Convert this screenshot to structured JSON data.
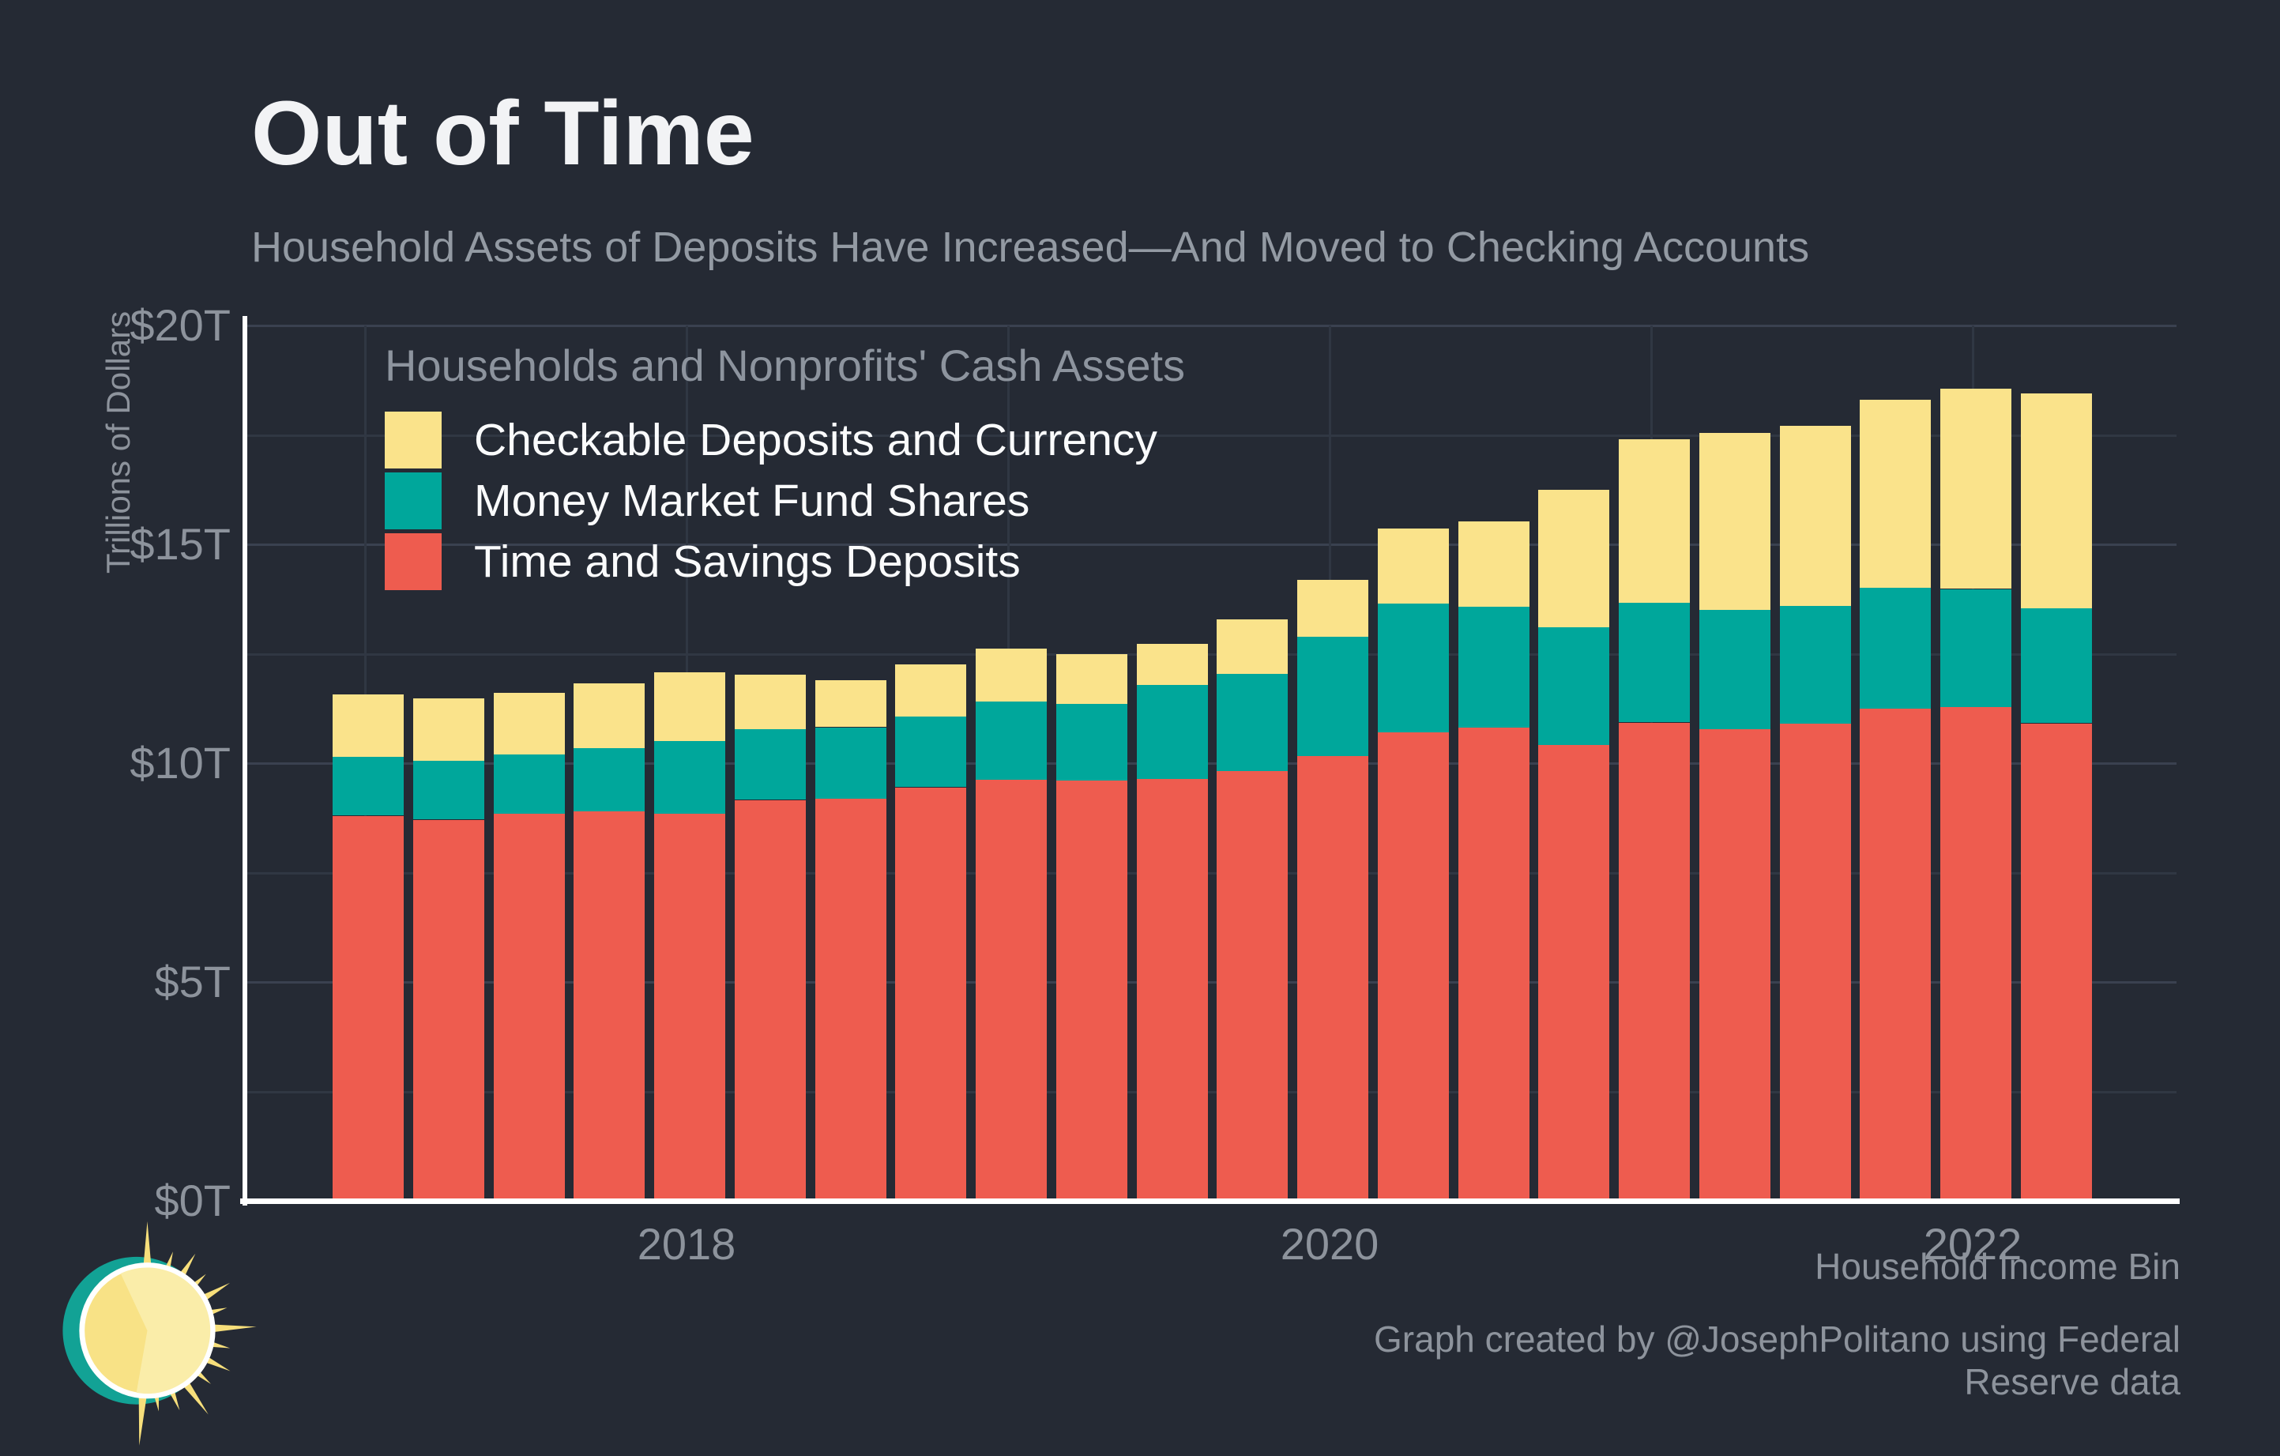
{
  "title": "Out of Time",
  "subtitle": "Household Assets of Deposits Have Increased—And Moved to Checking Accounts",
  "footer": "Graph created by @JosephPolitano using Federal Reserve data",
  "colors": {
    "background": "#252A34",
    "title_text": "#F2F3F5",
    "muted_text": "#939AA3",
    "tick_text": "#8D939C",
    "legend_text": "#FAFBFC",
    "axis_line": "#FFFFFF",
    "gridline_major": "#3A4150",
    "gridline_minor": "#303743",
    "bar_yellow": "#FAE38B",
    "bar_teal": "#00A79B",
    "bar_red": "#EE5C4F"
  },
  "legend": {
    "title": "Households and Nonprofits' Cash Assets",
    "items": [
      {
        "label": "Checkable Deposits and Currency",
        "color": "#FAE38B"
      },
      {
        "label": "Money Market Fund Shares",
        "color": "#00A79B"
      },
      {
        "label": "Time and Savings Deposits",
        "color": "#EE5C4F"
      }
    ]
  },
  "y_axis": {
    "label": "Trillions of Dollars"
  },
  "x_axis": {
    "caption": "Household Income Bin"
  },
  "chart_data": {
    "type": "bar",
    "stacked": true,
    "title": "Households and Nonprofits' Cash Assets",
    "xlabel": "Household Income Bin",
    "ylabel": "Trillions of Dollars",
    "ylim": [
      0,
      20
    ],
    "grid": true,
    "legend_position": "top-left",
    "y_ticks": [
      {
        "label": "$0T",
        "value": 0
      },
      {
        "label": "$5T",
        "value": 5
      },
      {
        "label": "$10T",
        "value": 10
      },
      {
        "label": "$15T",
        "value": 15
      },
      {
        "label": "$20T",
        "value": 20
      }
    ],
    "y_minor_gridlines": [
      2.5,
      7.5,
      12.5,
      17.5
    ],
    "x_ticks": [
      {
        "label": "2018",
        "year": 2018
      },
      {
        "label": "2020",
        "year": 2020
      },
      {
        "label": "2022",
        "year": 2022
      }
    ],
    "x_year_gridlines": [
      2017,
      2018,
      2019,
      2020,
      2021,
      2022
    ],
    "categories": [
      "2017 Q1",
      "2017 Q2",
      "2017 Q3",
      "2017 Q4",
      "2018 Q1",
      "2018 Q2",
      "2018 Q3",
      "2018 Q4",
      "2019 Q1",
      "2019 Q2",
      "2019 Q3",
      "2019 Q4",
      "2020 Q1",
      "2020 Q2",
      "2020 Q3",
      "2020 Q4",
      "2021 Q1",
      "2021 Q2",
      "2021 Q3",
      "2021 Q4",
      "2022 Q1",
      "2022 Q2"
    ],
    "series": [
      {
        "name": "Time and Savings Deposits",
        "color": "#EE5C4F",
        "values": [
          8.8,
          8.71,
          8.84,
          8.9,
          8.85,
          9.16,
          9.18,
          9.45,
          9.62,
          9.61,
          9.64,
          9.82,
          10.16,
          10.7,
          10.81,
          10.41,
          10.93,
          10.77,
          10.91,
          11.25,
          11.29,
          10.91
        ]
      },
      {
        "name": "Money Market Fund Shares",
        "color": "#00A79B",
        "values": [
          1.35,
          1.34,
          1.36,
          1.45,
          1.65,
          1.61,
          1.64,
          1.61,
          1.78,
          1.75,
          2.14,
          2.22,
          2.72,
          2.94,
          2.77,
          2.69,
          2.73,
          2.73,
          2.68,
          2.75,
          2.69,
          2.62
        ]
      },
      {
        "name": "Checkable Deposits and Currency",
        "color": "#FAE38B",
        "values": [
          1.43,
          1.44,
          1.4,
          1.47,
          1.58,
          1.26,
          1.08,
          1.2,
          1.22,
          1.13,
          0.94,
          1.24,
          1.31,
          1.72,
          1.94,
          3.15,
          3.74,
          4.05,
          4.11,
          4.3,
          4.57,
          4.92
        ]
      }
    ],
    "totals": [
      11.58,
      11.49,
      11.6,
      11.82,
      12.08,
      12.03,
      11.9,
      12.26,
      12.62,
      12.49,
      12.72,
      13.28,
      14.19,
      15.36,
      15.52,
      16.25,
      17.4,
      17.55,
      17.7,
      18.3,
      18.55,
      18.45
    ]
  }
}
